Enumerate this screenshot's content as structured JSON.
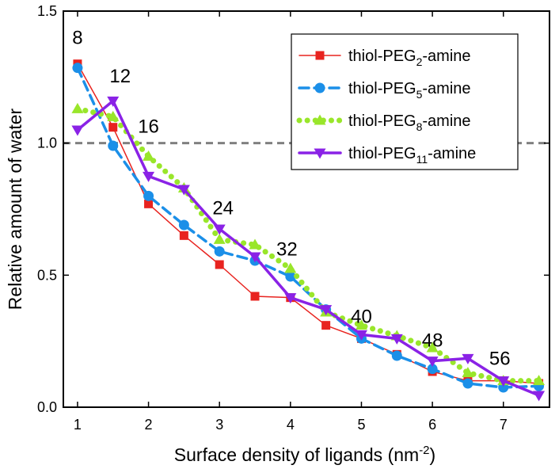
{
  "chart_data": {
    "type": "line",
    "title": "",
    "xlabel": "Surface density of ligands (nm",
    "xlabel_sup": "-2",
    "xlabel_end": ")",
    "ylabel": "Relative amount of water",
    "xlim": [
      0.8,
      7.65
    ],
    "ylim": [
      0.0,
      1.5
    ],
    "x_ticks": [
      1,
      2,
      3,
      4,
      5,
      6,
      7
    ],
    "y_ticks": [
      0.0,
      0.5,
      1.0,
      1.5
    ],
    "x_tick_labels": [
      "1",
      "2",
      "3",
      "4",
      "5",
      "6",
      "7"
    ],
    "y_tick_labels": [
      "0.0",
      "0.5",
      "1.0",
      "1.5"
    ],
    "reference_line": {
      "y": 1.0,
      "style": "dashed",
      "color": "#808080"
    },
    "x": [
      1.0,
      1.5,
      2.0,
      2.5,
      3.0,
      3.5,
      4.0,
      4.5,
      5.0,
      5.5,
      6.0,
      6.5,
      7.0,
      7.5
    ],
    "series": [
      {
        "name": "thiol-PEG2-amine",
        "label_pre": "thiol-PEG",
        "label_sub": "2",
        "label_post": "-amine",
        "color": "#e8231f",
        "line_style": "solid",
        "marker": "square",
        "line_width": 1.5,
        "values": [
          1.3,
          1.06,
          0.77,
          0.65,
          0.54,
          0.42,
          0.415,
          0.31,
          0.26,
          0.2,
          0.135,
          0.1,
          0.1,
          0.09
        ]
      },
      {
        "name": "thiol-PEG5-amine",
        "label_pre": "thiol-PEG",
        "label_sub": "5",
        "label_post": "-amine",
        "color": "#1b8fe8",
        "line_style": "dashed",
        "marker": "circle",
        "line_width": 3.5,
        "values": [
          1.285,
          0.99,
          0.8,
          0.69,
          0.59,
          0.555,
          0.495,
          0.37,
          0.26,
          0.195,
          0.145,
          0.09,
          0.075,
          0.08
        ]
      },
      {
        "name": "thiol-PEG8-amine",
        "label_pre": "thiol-PEG",
        "label_sub": "8",
        "label_post": "-amine",
        "color": "#99e62a",
        "line_style": "dotted",
        "marker": "triangle-up",
        "line_width": 5,
        "values": [
          1.13,
          1.1,
          0.95,
          0.83,
          0.635,
          0.615,
          0.525,
          0.36,
          0.31,
          0.27,
          0.225,
          0.13,
          0.1,
          0.1
        ]
      },
      {
        "name": "thiol-PEG11-amine",
        "label_pre": "thiol-PEG",
        "label_sub": "11",
        "label_post": "-amine",
        "color": "#8a22e6",
        "line_style": "solid",
        "marker": "triangle-down",
        "line_width": 3.5,
        "values": [
          1.05,
          1.16,
          0.875,
          0.825,
          0.675,
          0.57,
          0.415,
          0.37,
          0.275,
          0.26,
          0.175,
          0.185,
          0.1,
          0.045
        ]
      }
    ],
    "annotations": [
      {
        "text": "8",
        "x": 1.0,
        "y": 1.375
      },
      {
        "text": "12",
        "x": 1.6,
        "y": 1.23
      },
      {
        "text": "16",
        "x": 2.0,
        "y": 1.04
      },
      {
        "text": "24",
        "x": 3.05,
        "y": 0.73
      },
      {
        "text": "32",
        "x": 3.95,
        "y": 0.575
      },
      {
        "text": "40",
        "x": 5.0,
        "y": 0.32
      },
      {
        "text": "48",
        "x": 6.0,
        "y": 0.23
      },
      {
        "text": "56",
        "x": 6.95,
        "y": 0.16
      }
    ],
    "legend_position": "top-right"
  }
}
